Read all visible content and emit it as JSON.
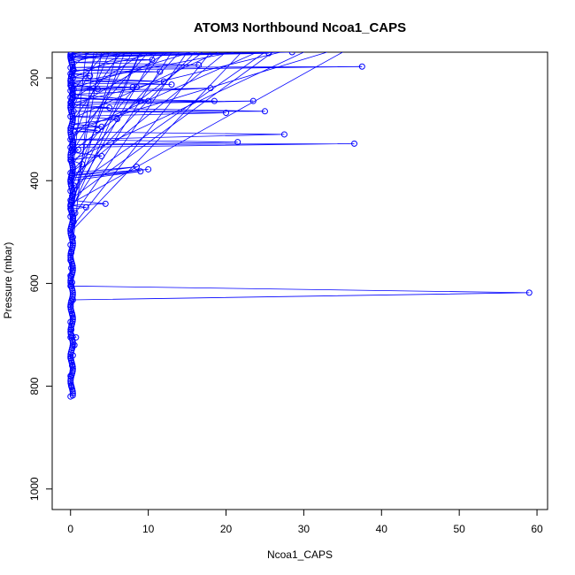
{
  "chart_data": {
    "type": "scatter",
    "title": "ATOM3 Northbound Ncoa1_CAPS",
    "xlabel": "Ncoa1_CAPS",
    "ylabel": "Pressure (mbar)",
    "xlim": [
      -2.36,
      61.36
    ],
    "ylim": [
      1040,
      150
    ],
    "y_reversed": true,
    "x_ticks": [
      0,
      10,
      20,
      30,
      40,
      50,
      60
    ],
    "y_ticks": [
      200,
      400,
      600,
      800,
      1000
    ],
    "series_color": "#0000ff",
    "marker": "open-circle",
    "connected": true,
    "points": [
      [
        0.0,
        820
      ],
      [
        0.1,
        800
      ],
      [
        0.0,
        780
      ],
      [
        0.2,
        760
      ],
      [
        0.0,
        745
      ],
      [
        0.3,
        740
      ],
      [
        0.5,
        720
      ],
      [
        0.0,
        705
      ],
      [
        0.7,
        705
      ],
      [
        0.1,
        690
      ],
      [
        0.0,
        675
      ],
      [
        0.2,
        660
      ],
      [
        0.0,
        645
      ],
      [
        0.3,
        632
      ],
      [
        59.0,
        618
      ],
      [
        0.0,
        605
      ],
      [
        0.2,
        598
      ],
      [
        0.0,
        585
      ],
      [
        0.1,
        570
      ],
      [
        0.0,
        555
      ],
      [
        0.1,
        540
      ],
      [
        0.0,
        525
      ],
      [
        0.3,
        510
      ],
      [
        0.0,
        495
      ],
      [
        0.4,
        480
      ],
      [
        0.0,
        470
      ],
      [
        0.6,
        463
      ],
      [
        0.0,
        455
      ],
      [
        2.0,
        452
      ],
      [
        0.0,
        448
      ],
      [
        4.5,
        445
      ],
      [
        0.0,
        438
      ],
      [
        0.2,
        430
      ],
      [
        0.0,
        420
      ],
      [
        0.5,
        410
      ],
      [
        0.0,
        400
      ],
      [
        9.0,
        382
      ],
      [
        0.1,
        395
      ],
      [
        10.0,
        378
      ],
      [
        0.2,
        390
      ],
      [
        8.5,
        373
      ],
      [
        0.0,
        385
      ],
      [
        1.5,
        368
      ],
      [
        0.0,
        360
      ],
      [
        4.0,
        352
      ],
      [
        0.3,
        345
      ],
      [
        1.0,
        340
      ],
      [
        0.0,
        335
      ],
      [
        36.5,
        328
      ],
      [
        0.2,
        330
      ],
      [
        21.5,
        325
      ],
      [
        0.0,
        320
      ],
      [
        27.5,
        310
      ],
      [
        0.5,
        305
      ],
      [
        3.5,
        302
      ],
      [
        0.0,
        298
      ],
      [
        4.0,
        295
      ],
      [
        0.2,
        290
      ],
      [
        6.0,
        280
      ],
      [
        0.0,
        275
      ],
      [
        20.0,
        268
      ],
      [
        0.4,
        265
      ],
      [
        25.0,
        265
      ],
      [
        0.0,
        258
      ],
      [
        5.0,
        258
      ],
      [
        0.2,
        252
      ],
      [
        23.5,
        245
      ],
      [
        0.0,
        248
      ],
      [
        18.5,
        245
      ],
      [
        0.3,
        240
      ],
      [
        9.0,
        245
      ],
      [
        0.0,
        238
      ],
      [
        10.0,
        245
      ],
      [
        0.2,
        232
      ],
      [
        18.0,
        220
      ],
      [
        0.0,
        225
      ],
      [
        8.5,
        218
      ],
      [
        0.4,
        222
      ],
      [
        8.0,
        218
      ],
      [
        0.0,
        215
      ],
      [
        3.5,
        222
      ],
      [
        0.2,
        210
      ],
      [
        13.0,
        213
      ],
      [
        0.0,
        205
      ],
      [
        12.0,
        207
      ],
      [
        0.3,
        200
      ],
      [
        2.5,
        196
      ],
      [
        0.0,
        192
      ],
      [
        11.5,
        188
      ],
      [
        0.4,
        185
      ],
      [
        37.5,
        178
      ],
      [
        0.0,
        180
      ],
      [
        16.5,
        175
      ],
      [
        0.2,
        170
      ],
      [
        10.5,
        165
      ],
      [
        0.0,
        160
      ],
      [
        25.5,
        152
      ],
      [
        0.3,
        158
      ],
      [
        28.5,
        150
      ],
      [
        0.0,
        155
      ],
      [
        16.5,
        150
      ],
      [
        0.1,
        152
      ]
    ],
    "fan_segments": [
      [
        0.0,
        420,
        7.0,
        150
      ],
      [
        0.1,
        430,
        9.0,
        150
      ],
      [
        0.0,
        440,
        11.0,
        150
      ],
      [
        0.2,
        450,
        13.0,
        150
      ],
      [
        0.0,
        460,
        6.0,
        150
      ],
      [
        0.3,
        470,
        15.0,
        150
      ],
      [
        0.0,
        480,
        4.0,
        150
      ],
      [
        0.2,
        490,
        18.0,
        150
      ],
      [
        0.0,
        500,
        22.0,
        150
      ],
      [
        0.4,
        510,
        3.0,
        150
      ],
      [
        0.0,
        415,
        25.0,
        150
      ],
      [
        0.1,
        405,
        2.0,
        150
      ],
      [
        0.0,
        395,
        20.0,
        150
      ],
      [
        0.3,
        380,
        14.0,
        150
      ],
      [
        0.0,
        372,
        12.0,
        150
      ],
      [
        0.2,
        360,
        30.0,
        150
      ],
      [
        0.0,
        350,
        8.0,
        150
      ],
      [
        0.5,
        340,
        17.0,
        150
      ],
      [
        0.0,
        330,
        5.0,
        150
      ],
      [
        0.2,
        320,
        10.0,
        150
      ],
      [
        0.0,
        310,
        24.0,
        150
      ],
      [
        0.3,
        300,
        33.0,
        150
      ],
      [
        0.0,
        290,
        6.5,
        150
      ],
      [
        0.1,
        280,
        19.0,
        150
      ],
      [
        0.0,
        270,
        3.5,
        150
      ],
      [
        0.2,
        260,
        12.5,
        150
      ],
      [
        0.0,
        250,
        27.0,
        150
      ],
      [
        0.4,
        240,
        9.5,
        150
      ],
      [
        0.0,
        230,
        4.5,
        150
      ],
      [
        0.2,
        220,
        15.5,
        150
      ],
      [
        0.0,
        210,
        21.0,
        150
      ],
      [
        0.3,
        200,
        7.5,
        150
      ],
      [
        0.0,
        190,
        11.5,
        150
      ],
      [
        0.1,
        180,
        2.5,
        150
      ],
      [
        0.0,
        170,
        5.5,
        150
      ],
      [
        0.2,
        165,
        8.5,
        150
      ],
      [
        0.0,
        160,
        3.0,
        150
      ],
      [
        0.1,
        155,
        1.5,
        150
      ],
      [
        0.0,
        400,
        16.0,
        150
      ],
      [
        0.2,
        455,
        9.0,
        150
      ],
      [
        0.0,
        445,
        35.0,
        150
      ],
      [
        0.1,
        435,
        26.0,
        150
      ]
    ],
    "grid": false,
    "legend": "none"
  }
}
